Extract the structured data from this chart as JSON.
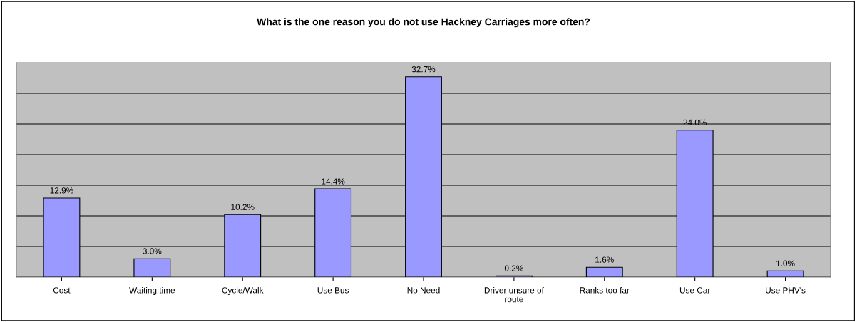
{
  "chart_data": {
    "type": "bar",
    "title": "What is the one reason you do not use Hackney Carriages more often?",
    "categories": [
      "Cost",
      "Waiting time",
      "Cycle/Walk",
      "Use Bus",
      "No Need",
      "Driver unsure of route",
      "Ranks too far",
      "Use Car",
      "Use PHV's"
    ],
    "values": [
      12.9,
      3.0,
      10.2,
      14.4,
      32.7,
      0.2,
      1.6,
      24.0,
      1.0
    ],
    "value_labels": [
      "12.9%",
      "3.0%",
      "10.2%",
      "14.4%",
      "32.7%",
      "0.2%",
      "1.6%",
      "24.0%",
      "1.0%"
    ],
    "color": "#9999ff",
    "ylim": [
      0,
      35
    ],
    "yticks": [
      {
        "value": 0,
        "label": null
      },
      {
        "value": 5,
        "label": null
      },
      {
        "value": 10,
        "label": null
      },
      {
        "value": 15,
        "label": null
      },
      {
        "value": 20,
        "label": null
      },
      {
        "value": 25,
        "label": null
      },
      {
        "value": 30,
        "label": null
      },
      {
        "value": 35,
        "label": null
      }
    ],
    "grid": "y",
    "tick_labels": "x"
  }
}
